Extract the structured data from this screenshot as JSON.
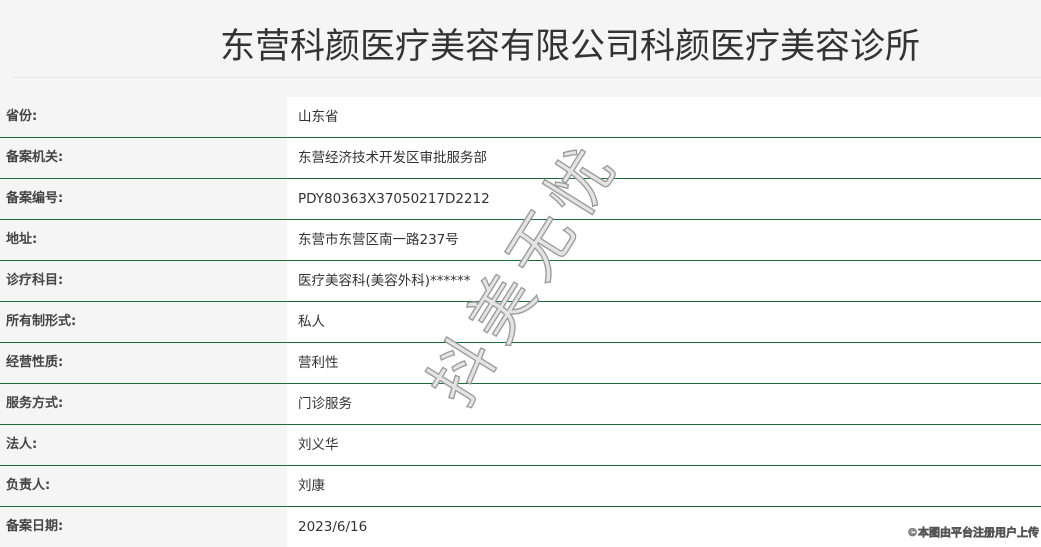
{
  "header": {
    "title": "东营科颜医疗美容有限公司科颜医疗美容诊所"
  },
  "rows": [
    {
      "label": "省份:",
      "value": "山东省"
    },
    {
      "label": "备案机关:",
      "value": "东营经济技术开发区审批服务部"
    },
    {
      "label": "备案编号:",
      "value": "PDY80363X37050217D2212"
    },
    {
      "label": "地址:",
      "value": "东营市东营区南一路237号"
    },
    {
      "label": "诊疗科目:",
      "value": "医疗美容科(美容外科)******"
    },
    {
      "label": "所有制形式:",
      "value": "私人"
    },
    {
      "label": "经营性质:",
      "value": "营利性"
    },
    {
      "label": "服务方式:",
      "value": "门诊服务"
    },
    {
      "label": "法人:",
      "value": "刘义华"
    },
    {
      "label": "负责人:",
      "value": "刘康"
    },
    {
      "label": "备案日期:",
      "value": "2023/6/16"
    }
  ],
  "watermark": "抖美无忧",
  "credit": "©本图由平台注册用户上传",
  "colors": {
    "row_divider": "#1e6a3a",
    "label_bg": "#f5f5f5",
    "value_bg": "#ffffff"
  }
}
